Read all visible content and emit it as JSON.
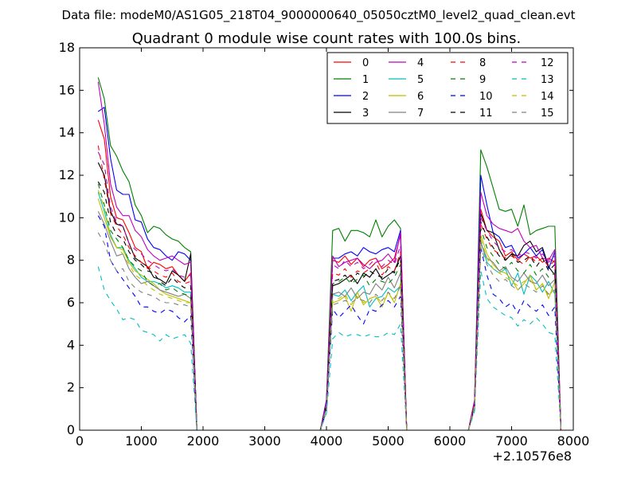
{
  "suptitle": "Data file: modeM0/AS1G05_218T04_9000000640_05050cztM0_level2_quad_clean.evt",
  "chart_data": {
    "type": "line",
    "title": "Quadrant 0 module wise count rates with 100.0s bins.",
    "xlabel": "",
    "ylabel": "",
    "xlim": [
      0,
      8000
    ],
    "ylim": [
      0,
      18
    ],
    "x_offset_label": "+2.10576e8",
    "x_ticks": [
      0,
      1000,
      2000,
      3000,
      4000,
      5000,
      6000,
      7000,
      8000
    ],
    "y_ticks": [
      0,
      2,
      4,
      6,
      8,
      10,
      12,
      14,
      16,
      18
    ],
    "grid": false,
    "legend_position": "top-right",
    "legend_columns": 4,
    "x": [
      300,
      400,
      500,
      600,
      700,
      800,
      900,
      1000,
      1100,
      1200,
      1300,
      1400,
      1500,
      1600,
      1700,
      1800,
      1900,
      2000,
      3900,
      4000,
      4100,
      4200,
      4300,
      4400,
      4500,
      4600,
      4700,
      4800,
      4900,
      5000,
      5100,
      5200,
      5300,
      5400,
      6300,
      6400,
      6500,
      6600,
      6700,
      6800,
      6900,
      7000,
      7100,
      7200,
      7300,
      7400,
      7500,
      7600,
      7700,
      7800
    ],
    "series": [
      {
        "name": "0",
        "color": "#ff0000",
        "dashed": false,
        "values": [
          14.6,
          13.7,
          11.0,
          10.0,
          9.9,
          9.3,
          8.6,
          8.4,
          7.6,
          7.9,
          7.8,
          7.6,
          7.7,
          7.3,
          7.0,
          7.4,
          0.0,
          0.0,
          0.0,
          1.4,
          8.0,
          7.9,
          8.2,
          7.8,
          8.1,
          7.7,
          8.0,
          8.1,
          7.6,
          7.8,
          8.1,
          9.2,
          0.0,
          0.0,
          0.0,
          1.4,
          10.4,
          9.4,
          9.1,
          8.9,
          8.2,
          8.4,
          8.0,
          8.3,
          8.1,
          8.2,
          7.9,
          8.1,
          7.9,
          0.0
        ]
      },
      {
        "name": "1",
        "color": "#008000",
        "dashed": false,
        "values": [
          16.6,
          15.6,
          13.4,
          12.9,
          12.2,
          11.7,
          10.6,
          10.1,
          9.3,
          9.6,
          9.5,
          9.2,
          9.0,
          8.9,
          8.6,
          8.4,
          0.0,
          0.0,
          0.0,
          1.4,
          9.4,
          9.5,
          8.9,
          9.4,
          9.4,
          9.3,
          9.1,
          9.9,
          9.1,
          9.6,
          9.9,
          9.5,
          0.0,
          0.0,
          0.0,
          1.4,
          13.2,
          12.4,
          11.4,
          10.4,
          10.3,
          10.4,
          9.6,
          10.6,
          9.2,
          9.4,
          9.5,
          9.6,
          9.6,
          0.0
        ]
      },
      {
        "name": "2",
        "color": "#0000ff",
        "dashed": false,
        "values": [
          15.0,
          15.2,
          12.8,
          11.3,
          11.1,
          11.1,
          9.9,
          9.8,
          9.0,
          8.6,
          8.5,
          8.2,
          8.0,
          8.4,
          8.3,
          8.0,
          0.0,
          0.0,
          0.0,
          1.4,
          8.1,
          8.1,
          8.3,
          8.4,
          8.2,
          8.6,
          8.4,
          8.3,
          8.5,
          8.6,
          8.4,
          9.4,
          0.0,
          0.0,
          0.0,
          1.4,
          12.0,
          10.6,
          9.3,
          9.1,
          8.6,
          8.7,
          8.1,
          8.3,
          8.6,
          8.2,
          8.5,
          7.6,
          8.4,
          0.0
        ]
      },
      {
        "name": "3",
        "color": "#000000",
        "dashed": false,
        "values": [
          12.6,
          12.0,
          10.3,
          9.7,
          9.6,
          8.8,
          8.1,
          7.9,
          7.7,
          7.2,
          7.1,
          6.9,
          7.5,
          7.3,
          7.0,
          8.3,
          0.0,
          0.0,
          0.0,
          1.2,
          6.8,
          6.9,
          7.1,
          7.3,
          6.9,
          7.4,
          7.2,
          7.6,
          7.1,
          7.3,
          7.5,
          8.2,
          0.0,
          0.0,
          0.0,
          1.3,
          10.2,
          9.4,
          9.3,
          8.5,
          8.0,
          8.3,
          8.2,
          8.7,
          8.9,
          8.4,
          8.6,
          7.7,
          7.3,
          0.0
        ]
      },
      {
        "name": "4",
        "color": "#bf00bf",
        "dashed": false,
        "values": [
          16.4,
          14.4,
          11.6,
          10.5,
          10.1,
          10.1,
          9.4,
          9.1,
          8.5,
          8.2,
          8.0,
          8.1,
          8.2,
          8.0,
          7.8,
          7.9,
          0.0,
          0.0,
          0.0,
          1.3,
          8.2,
          7.7,
          7.9,
          8.0,
          8.1,
          7.8,
          7.6,
          7.9,
          8.0,
          8.3,
          7.9,
          9.3,
          0.0,
          0.0,
          0.0,
          1.4,
          11.2,
          10.1,
          9.7,
          9.5,
          9.4,
          9.3,
          9.5,
          8.9,
          8.6,
          8.7,
          8.1,
          8.0,
          8.5,
          0.0
        ]
      },
      {
        "name": "5",
        "color": "#00bfbf",
        "dashed": false,
        "values": [
          11.2,
          10.3,
          9.2,
          8.6,
          8.6,
          8.0,
          7.6,
          7.2,
          7.0,
          7.0,
          6.9,
          6.7,
          6.8,
          6.7,
          6.5,
          6.5,
          0.0,
          0.0,
          0.0,
          1.1,
          6.4,
          6.3,
          6.6,
          6.1,
          6.5,
          6.8,
          5.8,
          6.2,
          6.3,
          6.7,
          6.5,
          6.8,
          0.0,
          0.0,
          0.0,
          1.1,
          8.9,
          7.9,
          7.6,
          7.4,
          7.6,
          6.8,
          7.4,
          6.4,
          7.3,
          7.0,
          6.5,
          7.0,
          6.4,
          0.0
        ]
      },
      {
        "name": "6",
        "color": "#bfbf00",
        "dashed": false,
        "values": [
          10.9,
          10.0,
          9.1,
          8.6,
          8.5,
          7.9,
          7.5,
          7.3,
          7.1,
          6.9,
          6.6,
          6.4,
          6.3,
          6.2,
          6.1,
          6.0,
          0.0,
          0.0,
          0.0,
          1.1,
          6.0,
          6.1,
          6.3,
          5.6,
          6.5,
          5.9,
          6.2,
          6.3,
          5.8,
          6.5,
          6.0,
          6.9,
          0.0,
          0.0,
          0.0,
          1.1,
          9.2,
          8.3,
          7.8,
          7.5,
          7.4,
          7.1,
          6.6,
          6.9,
          7.3,
          6.6,
          6.9,
          6.2,
          7.0,
          0.0
        ]
      },
      {
        "name": "7",
        "color": "#808080",
        "dashed": false,
        "values": [
          10.3,
          9.7,
          8.9,
          8.2,
          8.3,
          7.6,
          7.2,
          6.9,
          7.0,
          6.8,
          6.6,
          6.5,
          6.4,
          6.3,
          6.4,
          6.2,
          0.0,
          0.0,
          0.0,
          1.1,
          6.4,
          6.5,
          6.3,
          6.7,
          6.2,
          6.5,
          6.4,
          6.9,
          6.6,
          7.2,
          6.7,
          7.4,
          0.0,
          0.0,
          0.0,
          1.1,
          8.8,
          8.1,
          7.9,
          7.5,
          7.7,
          7.2,
          7.0,
          7.4,
          7.0,
          6.9,
          7.3,
          6.8,
          7.1,
          0.0
        ]
      },
      {
        "name": "8",
        "color": "#ff0000",
        "dashed": true,
        "values": [
          13.4,
          11.8,
          10.2,
          9.6,
          9.2,
          8.6,
          8.2,
          7.9,
          7.7,
          7.5,
          7.3,
          7.2,
          7.4,
          7.0,
          6.9,
          7.0,
          0.0,
          0.0,
          0.0,
          1.2,
          7.4,
          7.3,
          7.6,
          7.2,
          7.5,
          7.4,
          7.6,
          7.9,
          7.3,
          7.7,
          7.5,
          8.4,
          0.0,
          0.0,
          0.0,
          1.3,
          9.7,
          9.0,
          8.5,
          8.3,
          8.1,
          8.2,
          8.0,
          7.8,
          8.2,
          7.9,
          8.1,
          7.7,
          8.0,
          0.0
        ]
      },
      {
        "name": "9",
        "color": "#008000",
        "dashed": true,
        "values": [
          11.6,
          10.6,
          9.4,
          9.0,
          8.6,
          8.0,
          7.7,
          7.5,
          7.0,
          6.8,
          6.9,
          6.6,
          6.7,
          6.5,
          6.4,
          6.3,
          0.0,
          0.0,
          0.0,
          1.1,
          6.9,
          7.0,
          7.2,
          6.9,
          7.1,
          7.3,
          6.8,
          7.1,
          7.0,
          6.9,
          7.2,
          7.8,
          0.0,
          0.0,
          0.0,
          1.2,
          9.5,
          8.6,
          8.2,
          7.8,
          7.6,
          7.9,
          7.5,
          7.4,
          7.8,
          7.3,
          7.6,
          7.2,
          7.4,
          0.0
        ]
      },
      {
        "name": "10",
        "color": "#0000ff",
        "dashed": true,
        "values": [
          10.1,
          9.6,
          8.0,
          7.5,
          7.1,
          6.7,
          6.3,
          5.8,
          5.8,
          5.6,
          5.5,
          5.7,
          5.6,
          5.3,
          5.1,
          5.4,
          0.0,
          0.0,
          0.0,
          0.9,
          5.7,
          5.3,
          5.6,
          5.9,
          5.4,
          5.0,
          5.7,
          5.6,
          5.9,
          6.1,
          5.8,
          6.3,
          0.0,
          0.0,
          0.0,
          1.0,
          8.6,
          7.3,
          6.4,
          6.2,
          5.8,
          6.0,
          5.5,
          6.1,
          5.8,
          5.6,
          5.9,
          5.4,
          5.8,
          0.0
        ]
      },
      {
        "name": "11",
        "color": "#000000",
        "dashed": true,
        "values": [
          11.7,
          11.2,
          9.8,
          9.2,
          9.0,
          8.4,
          8.0,
          7.8,
          7.5,
          7.4,
          7.0,
          6.8,
          7.2,
          6.9,
          6.7,
          6.8,
          0.0,
          0.0,
          0.0,
          1.2,
          7.0,
          7.1,
          7.3,
          7.0,
          7.4,
          7.2,
          7.5,
          7.3,
          7.2,
          7.6,
          7.4,
          8.1,
          0.0,
          0.0,
          0.0,
          1.2,
          9.8,
          9.1,
          8.6,
          8.2,
          8.0,
          8.3,
          7.9,
          8.0,
          8.2,
          7.7,
          8.1,
          7.5,
          7.8,
          0.0
        ]
      },
      {
        "name": "12",
        "color": "#bf00bf",
        "dashed": true,
        "values": [
          13.1,
          12.5,
          10.5,
          9.8,
          9.6,
          8.8,
          8.5,
          8.3,
          8.0,
          7.8,
          7.6,
          7.5,
          7.6,
          7.3,
          7.2,
          7.3,
          0.0,
          0.0,
          0.0,
          1.3,
          7.8,
          7.6,
          8.0,
          7.7,
          7.9,
          7.6,
          7.8,
          8.1,
          7.7,
          8.0,
          7.8,
          8.7,
          0.0,
          0.0,
          0.0,
          1.3,
          10.0,
          9.4,
          8.9,
          8.6,
          8.4,
          8.5,
          8.2,
          8.4,
          8.3,
          8.1,
          8.3,
          7.9,
          8.2,
          0.0
        ]
      },
      {
        "name": "13",
        "color": "#00bfbf",
        "dashed": true,
        "values": [
          7.7,
          6.6,
          6.1,
          5.7,
          5.2,
          5.3,
          5.2,
          4.7,
          4.6,
          4.5,
          4.2,
          4.5,
          4.3,
          4.4,
          4.5,
          4.1,
          0.0,
          0.0,
          0.0,
          0.8,
          4.3,
          4.6,
          4.4,
          4.5,
          4.5,
          4.4,
          4.5,
          4.4,
          4.4,
          4.6,
          4.5,
          5.0,
          0.0,
          0.0,
          0.0,
          0.9,
          7.5,
          6.2,
          5.8,
          5.6,
          5.4,
          5.3,
          4.9,
          5.2,
          5.0,
          5.3,
          5.0,
          4.6,
          4.5,
          0.0
        ]
      },
      {
        "name": "14",
        "color": "#bfbf00",
        "dashed": true,
        "values": [
          11.3,
          10.5,
          9.1,
          8.6,
          8.3,
          7.8,
          7.3,
          7.1,
          6.8,
          6.6,
          6.4,
          6.3,
          6.2,
          6.1,
          6.0,
          6.0,
          0.0,
          0.0,
          0.0,
          1.0,
          6.1,
          6.2,
          6.4,
          5.9,
          6.3,
          6.0,
          6.2,
          6.3,
          6.0,
          6.4,
          6.1,
          6.8,
          0.0,
          0.0,
          0.0,
          1.1,
          9.0,
          8.1,
          7.6,
          7.4,
          7.2,
          7.0,
          6.8,
          7.0,
          7.1,
          6.6,
          6.9,
          6.3,
          6.7,
          0.0
        ]
      },
      {
        "name": "15",
        "color": "#808080",
        "dashed": true,
        "values": [
          9.3,
          8.8,
          8.0,
          7.5,
          7.6,
          7.0,
          6.7,
          6.5,
          6.4,
          6.3,
          6.1,
          6.0,
          6.0,
          5.9,
          5.9,
          5.8,
          0.0,
          0.0,
          0.0,
          1.0,
          5.9,
          6.0,
          6.1,
          6.0,
          6.2,
          6.1,
          6.0,
          6.4,
          6.1,
          6.5,
          6.2,
          6.8,
          0.0,
          0.0,
          0.0,
          1.1,
          8.6,
          7.8,
          7.3,
          7.0,
          7.1,
          6.8,
          6.6,
          6.9,
          6.7,
          6.5,
          6.8,
          6.4,
          6.6,
          0.0
        ]
      }
    ]
  }
}
